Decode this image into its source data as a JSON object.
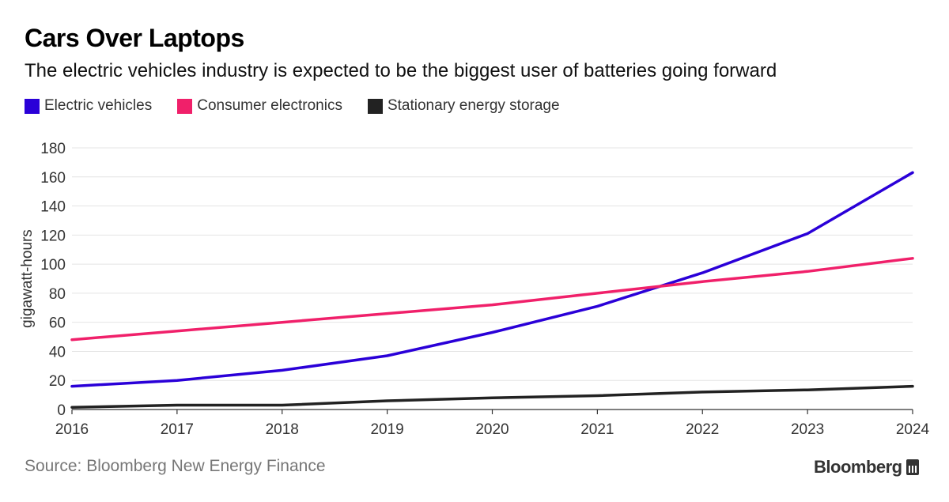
{
  "header": {
    "title": "Cars Over Laptops",
    "subtitle": "The electric vehicles industry is expected to be the biggest user of batteries going forward"
  },
  "legend": [
    {
      "label": "Electric vehicles",
      "color": "#2a00d8"
    },
    {
      "label": "Consumer electronics",
      "color": "#f0206a"
    },
    {
      "label": "Stationary energy storage",
      "color": "#222222"
    }
  ],
  "footer": {
    "source": "Source: Bloomberg New Energy Finance",
    "brand": "Bloomberg",
    "brand_icon": "bloomberg-bars-icon"
  },
  "chart_data": {
    "type": "line",
    "x": [
      "2016",
      "2017",
      "2018",
      "2019",
      "2020",
      "2021",
      "2022",
      "2023",
      "2024"
    ],
    "series": [
      {
        "name": "Electric vehicles",
        "color": "#2a00d8",
        "values": [
          16,
          20,
          27,
          37,
          53,
          71,
          94,
          121,
          163
        ]
      },
      {
        "name": "Consumer electronics",
        "color": "#f0206a",
        "values": [
          48,
          54,
          60,
          66,
          72,
          80,
          88,
          95,
          104
        ]
      },
      {
        "name": "Stationary energy storage",
        "color": "#222222",
        "values": [
          1.5,
          3,
          3,
          6,
          8,
          9.5,
          12,
          13.5,
          16
        ]
      }
    ],
    "ylabel": "gigawatt-hours",
    "xlabel": "",
    "ylim": [
      0,
      180
    ],
    "yticks": [
      0,
      20,
      40,
      60,
      80,
      100,
      120,
      140,
      160,
      180
    ],
    "grid": true
  }
}
